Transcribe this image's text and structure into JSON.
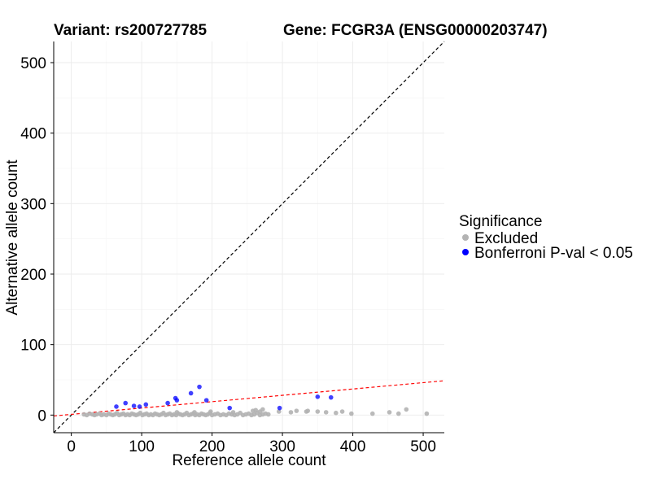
{
  "chart_data": {
    "type": "scatter",
    "title_left": "Variant: rs200727785",
    "title_right": "Gene: FCGR3A (ENSG00000203747)",
    "xlabel": "Reference allele count",
    "ylabel": "Alternative allele count",
    "xlim": [
      -25,
      530
    ],
    "ylim": [
      -25,
      530
    ],
    "x_ticks": [
      0,
      100,
      200,
      300,
      400,
      500
    ],
    "y_ticks": [
      0,
      100,
      200,
      300,
      400,
      500
    ],
    "grid": true,
    "legend": {
      "title": "Significance",
      "position": "right",
      "entries": [
        {
          "label": "Excluded",
          "color": "#b3b3b3"
        },
        {
          "label": "Bonferroni P-val < 0.05",
          "color": "#0000ff"
        }
      ]
    },
    "reference_lines": [
      {
        "name": "identity",
        "slope": 1,
        "intercept": 0,
        "style": "dashed",
        "color": "#000000"
      },
      {
        "name": "ratio-fit",
        "slope": 0.09,
        "intercept": 1,
        "style": "dashed",
        "color": "#ff0000"
      }
    ],
    "series": [
      {
        "name": "Excluded",
        "color": "#b3b3b3",
        "points": [
          [
            18,
            1
          ],
          [
            22,
            0
          ],
          [
            26,
            2
          ],
          [
            30,
            1
          ],
          [
            33,
            0
          ],
          [
            36,
            1
          ],
          [
            40,
            2
          ],
          [
            43,
            0
          ],
          [
            46,
            1
          ],
          [
            50,
            0
          ],
          [
            53,
            2
          ],
          [
            56,
            1
          ],
          [
            59,
            0
          ],
          [
            62,
            1
          ],
          [
            65,
            3
          ],
          [
            68,
            0
          ],
          [
            71,
            1
          ],
          [
            74,
            2
          ],
          [
            77,
            0
          ],
          [
            80,
            1
          ],
          [
            83,
            0
          ],
          [
            86,
            2
          ],
          [
            89,
            1
          ],
          [
            92,
            0
          ],
          [
            95,
            1
          ],
          [
            98,
            3
          ],
          [
            101,
            0
          ],
          [
            104,
            1
          ],
          [
            107,
            2
          ],
          [
            110,
            0
          ],
          [
            113,
            1
          ],
          [
            116,
            0
          ],
          [
            119,
            2
          ],
          [
            122,
            1
          ],
          [
            125,
            0
          ],
          [
            128,
            1
          ],
          [
            131,
            3
          ],
          [
            134,
            0
          ],
          [
            137,
            1
          ],
          [
            140,
            2
          ],
          [
            143,
            0
          ],
          [
            146,
            1
          ],
          [
            149,
            0
          ],
          [
            152,
            2
          ],
          [
            155,
            1
          ],
          [
            158,
            0
          ],
          [
            161,
            1
          ],
          [
            164,
            3
          ],
          [
            167,
            0
          ],
          [
            170,
            1
          ],
          [
            173,
            2
          ],
          [
            176,
            0
          ],
          [
            179,
            1
          ],
          [
            182,
            0
          ],
          [
            185,
            2
          ],
          [
            188,
            1
          ],
          [
            191,
            0
          ],
          [
            194,
            1
          ],
          [
            197,
            3
          ],
          [
            200,
            0
          ],
          [
            204,
            1
          ],
          [
            208,
            2
          ],
          [
            212,
            0
          ],
          [
            216,
            1
          ],
          [
            220,
            0
          ],
          [
            224,
            2
          ],
          [
            228,
            1
          ],
          [
            232,
            0
          ],
          [
            236,
            1
          ],
          [
            240,
            3
          ],
          [
            244,
            0
          ],
          [
            248,
            1
          ],
          [
            252,
            2
          ],
          [
            256,
            0
          ],
          [
            260,
            1
          ],
          [
            264,
            3
          ],
          [
            268,
            0
          ],
          [
            272,
            1
          ],
          [
            276,
            2
          ],
          [
            280,
            1
          ],
          [
            150,
            4
          ],
          [
            175,
            4
          ],
          [
            198,
            5
          ],
          [
            230,
            4
          ],
          [
            258,
            6
          ],
          [
            262,
            7
          ],
          [
            268,
            5
          ],
          [
            272,
            8
          ],
          [
            295,
            5
          ],
          [
            312,
            4
          ],
          [
            320,
            6
          ],
          [
            334,
            5
          ],
          [
            336,
            6
          ],
          [
            350,
            5
          ],
          [
            362,
            4
          ],
          [
            376,
            3
          ],
          [
            385,
            5
          ],
          [
            398,
            2
          ],
          [
            428,
            2
          ],
          [
            452,
            4
          ],
          [
            465,
            2
          ],
          [
            476,
            8
          ],
          [
            505,
            2
          ]
        ]
      },
      {
        "name": "Bonferroni P-val < 0.05",
        "color": "#0000ff",
        "points": [
          [
            64,
            12
          ],
          [
            77,
            17
          ],
          [
            89,
            13
          ],
          [
            97,
            12
          ],
          [
            106,
            15
          ],
          [
            137,
            17
          ],
          [
            148,
            24
          ],
          [
            150,
            21
          ],
          [
            170,
            31
          ],
          [
            182,
            40
          ],
          [
            192,
            21
          ],
          [
            225,
            10
          ],
          [
            296,
            10
          ],
          [
            350,
            26
          ],
          [
            369,
            25
          ]
        ]
      }
    ]
  }
}
